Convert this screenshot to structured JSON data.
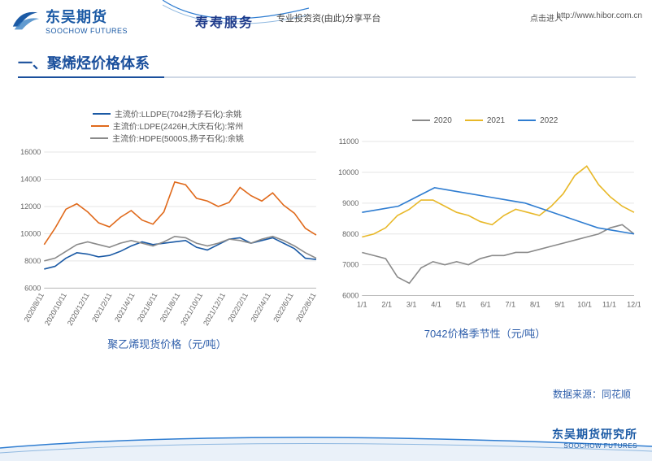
{
  "header": {
    "logo_cn": "东吴期货",
    "logo_en": "SOOCHOW FUTURES",
    "logo_badge": "SCF",
    "slogan": "寿寿服务",
    "slogan2": "专业投资资(由此)分享平台",
    "enter_label": "点击进入",
    "url": "http://www.hibor.com.cn"
  },
  "section_title": "一、聚烯烃价格体系",
  "chart1": {
    "type": "line",
    "caption": "聚乙烯现货价格（元/吨）",
    "ylim": [
      6000,
      16000
    ],
    "yticks": [
      6000,
      8000,
      10000,
      12000,
      14000,
      16000
    ],
    "xticks": [
      "2020/8/11",
      "2020/10/11",
      "2020/12/11",
      "2021/2/11",
      "2021/4/11",
      "2021/6/11",
      "2021/8/11",
      "2021/10/11",
      "2021/12/11",
      "2022/2/11",
      "2022/4/11",
      "2022/6/11",
      "2022/8/11"
    ],
    "background": "#ffffff",
    "grid_color": "#e5e5e5",
    "series": [
      {
        "name": "主流价:LLDPE(7042扬子石化):余姚",
        "color": "#1b5aa5",
        "points": [
          7400,
          7600,
          8200,
          8600,
          8500,
          8300,
          8400,
          8700,
          9100,
          9400,
          9200,
          9300,
          9400,
          9500,
          9000,
          8800,
          9200,
          9600,
          9700,
          9300,
          9500,
          9700,
          9300,
          8900,
          8200,
          8100
        ]
      },
      {
        "name": "主流价:LDPE(2426H,大庆石化):常州",
        "color": "#e06a1c",
        "points": [
          9200,
          10400,
          11800,
          12200,
          11600,
          10800,
          10500,
          11200,
          11700,
          11000,
          10700,
          11600,
          13800,
          13600,
          12600,
          12400,
          12000,
          12300,
          13400,
          12800,
          12400,
          13000,
          12100,
          11500,
          10400,
          9900
        ]
      },
      {
        "name": "主流价:HDPE(5000S,扬子石化):余姚",
        "color": "#8a8a8a",
        "points": [
          8000,
          8200,
          8700,
          9200,
          9400,
          9200,
          9000,
          9300,
          9500,
          9300,
          9100,
          9400,
          9800,
          9700,
          9300,
          9100,
          9300,
          9600,
          9500,
          9300,
          9600,
          9800,
          9500,
          9100,
          8600,
          8200
        ]
      }
    ]
  },
  "chart2": {
    "type": "line",
    "caption": "7042价格季节性（元/吨）",
    "ylim": [
      6000,
      11000
    ],
    "yticks": [
      6000,
      7000,
      8000,
      9000,
      10000,
      11000
    ],
    "xticks": [
      "1/1",
      "2/1",
      "3/1",
      "4/1",
      "5/1",
      "6/1",
      "7/1",
      "8/1",
      "9/1",
      "10/1",
      "11/1",
      "12/1"
    ],
    "background": "#ffffff",
    "grid_color": "#e5e5e5",
    "series": [
      {
        "name": "2020",
        "color": "#8a8a8a",
        "points": [
          7400,
          7300,
          7200,
          6600,
          6400,
          6900,
          7100,
          7000,
          7100,
          7000,
          7200,
          7300,
          7300,
          7400,
          7400,
          7500,
          7600,
          7700,
          7800,
          7900,
          8000,
          8200,
          8300,
          8000
        ]
      },
      {
        "name": "2021",
        "color": "#e8b828",
        "points": [
          7900,
          8000,
          8200,
          8600,
          8800,
          9100,
          9100,
          8900,
          8700,
          8600,
          8400,
          8300,
          8600,
          8800,
          8700,
          8600,
          8900,
          9300,
          9900,
          10200,
          9600,
          9200,
          8900,
          8700
        ]
      },
      {
        "name": "2022",
        "color": "#2f7dd1",
        "points": [
          8700,
          8800,
          8900,
          9200,
          9500,
          9400,
          9300,
          9200,
          9100,
          9000,
          8800,
          8600,
          8400,
          8200,
          8100,
          8000
        ]
      }
    ]
  },
  "source_label": "数据来源：同花顺",
  "footer": {
    "cn": "东吴期货研究所",
    "en": "SOOCHOW FUTURES"
  }
}
